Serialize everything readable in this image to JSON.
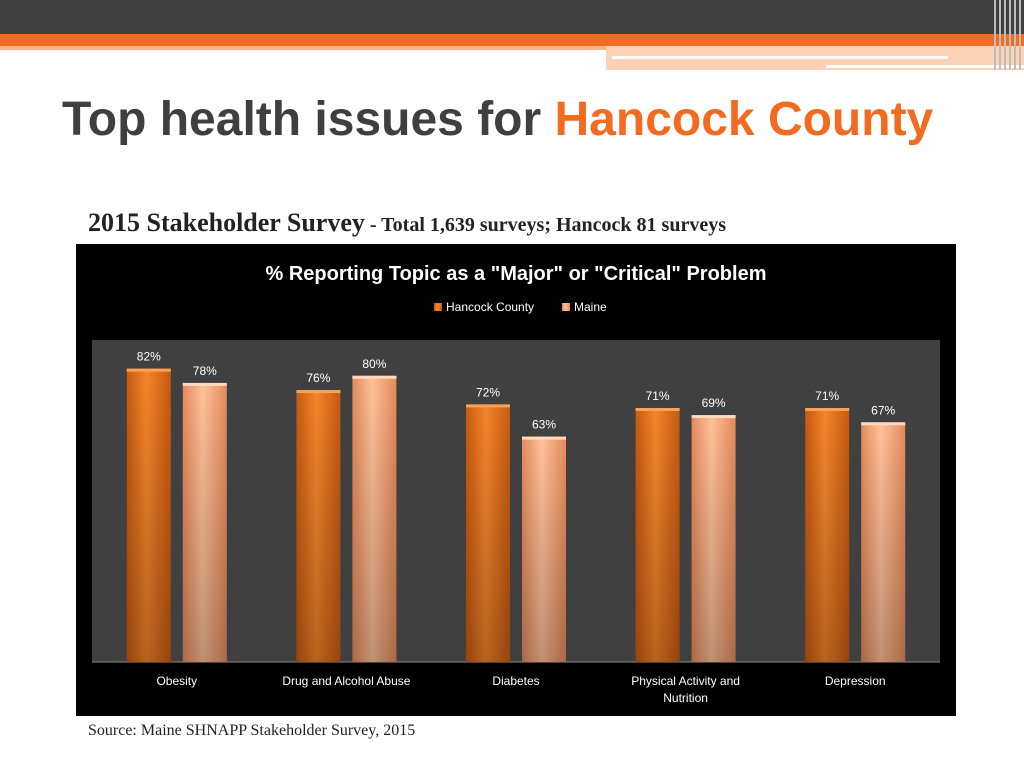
{
  "slide": {
    "title_main": "Top health issues for ",
    "title_accent": "Hancock County",
    "subtitle_main": "2015 Stakeholder Survey",
    "subtitle_detail": " - Total 1,639 surveys; Hancock 81 surveys",
    "source": "Source: Maine SHNAPP Stakeholder Survey, 2015"
  },
  "chart_data": {
    "type": "bar",
    "title": "% Reporting Topic as a \"Major\" or \"Critical\" Problem",
    "categories": [
      "Obesity",
      "Drug and Alcohol Abuse",
      "Diabetes",
      "Physical Activity and Nutrition",
      "Depression"
    ],
    "category_lines": [
      [
        "Obesity"
      ],
      [
        "Drug and Alcohol Abuse"
      ],
      [
        "Diabetes"
      ],
      [
        "Physical Activity and",
        "Nutrition"
      ],
      [
        "Depression"
      ]
    ],
    "series": [
      {
        "name": "Hancock County",
        "values": [
          82,
          76,
          72,
          71,
          71
        ],
        "labels": [
          "82%",
          "76%",
          "72%",
          "71%",
          "71%"
        ],
        "color": "#e8761f"
      },
      {
        "name": "Maine",
        "values": [
          78,
          80,
          63,
          69,
          67
        ],
        "labels": [
          "78%",
          "80%",
          "63%",
          "69%",
          "67%"
        ],
        "color": "#f6aa7c"
      }
    ],
    "ylim": [
      0,
      90
    ],
    "legend_position": "top",
    "grid": false,
    "background": "#000000",
    "plot_background": "#404040",
    "text_color": "#ffffff"
  }
}
